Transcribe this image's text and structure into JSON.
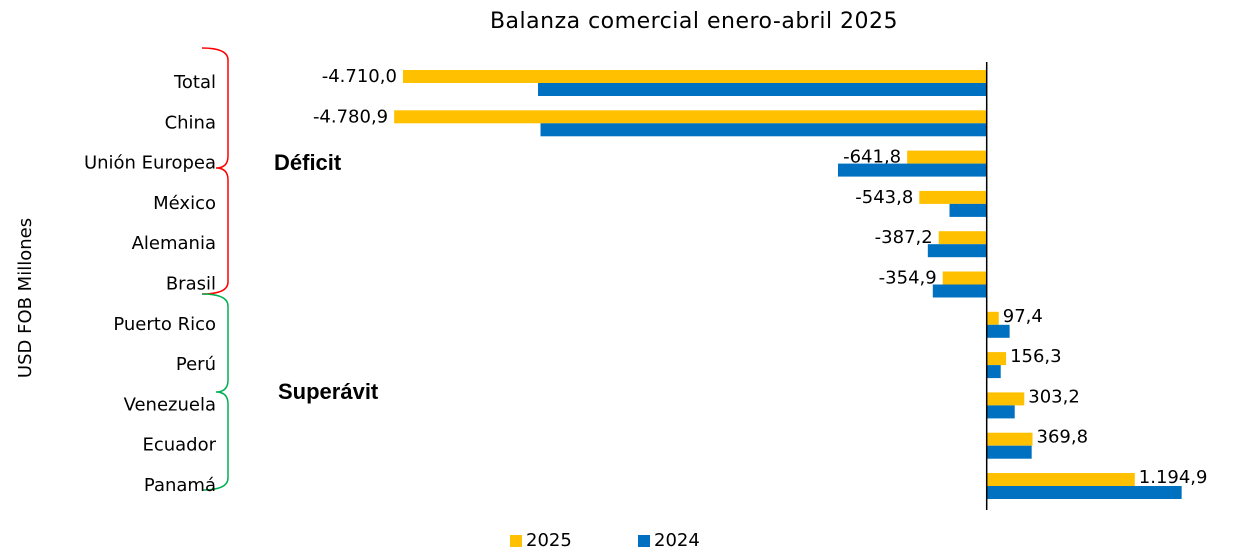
{
  "chart_data": {
    "type": "bar",
    "orientation": "horizontal",
    "title": "Balanza comercial enero-abril 2025",
    "ylabel": "USD FOB Millones",
    "categories": [
      "Total",
      "China",
      "Unión Europea",
      "México",
      "Alemania",
      "Brasil",
      "Puerto Rico",
      "Perú",
      "Venezuela",
      "Ecuador",
      "Panamá"
    ],
    "series": [
      {
        "name": "2025",
        "color": "#FFC000",
        "values": [
          -4710.0,
          -4780.9,
          -641.8,
          -543.8,
          -387.2,
          -354.9,
          97.4,
          156.3,
          303.2,
          369.8,
          1194.9
        ],
        "value_labels": [
          "-4.710,0",
          "-4.780,9",
          "-641,8",
          "-543,8",
          "-387,2",
          "-354,9",
          "97,4",
          "156,3",
          "303,2",
          "369,8",
          "1.194,9"
        ]
      },
      {
        "name": "2024",
        "color": "#0070C0",
        "values": [
          -3620,
          -3600,
          -1200,
          -300,
          -475,
          -435,
          185,
          113,
          226,
          363,
          1573
        ]
      }
    ],
    "xlim": [
      -5000,
      1600
    ],
    "annotations": [
      {
        "text": "Déficit",
        "color": "#FF0000"
      },
      {
        "text": "Superávit",
        "color": "#00B050"
      }
    ],
    "legend": "bottom"
  }
}
